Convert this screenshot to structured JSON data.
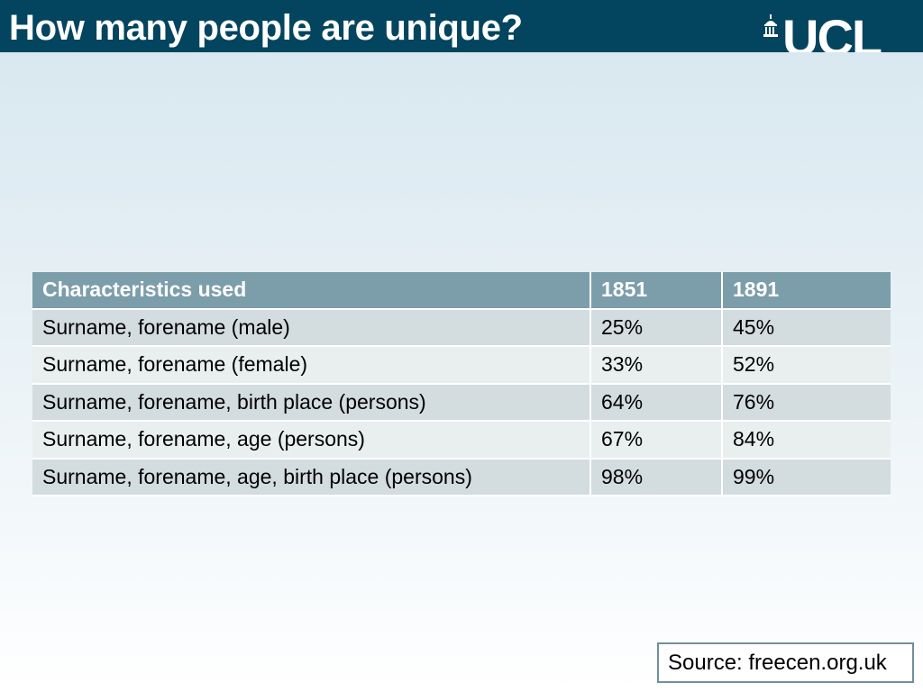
{
  "slide": {
    "title": "How many people are unique?",
    "logo_text": "UCL"
  },
  "table": {
    "headers": [
      "Characteristics used",
      "1851",
      "1891"
    ],
    "rows": [
      [
        "Surname, forename (male)",
        "25%",
        "45%"
      ],
      [
        "Surname, forename (female)",
        "33%",
        "52%"
      ],
      [
        "Surname, forename, birth place (persons)",
        "64%",
        "76%"
      ],
      [
        "Surname, forename, age (persons)",
        "67%",
        "84%"
      ],
      [
        "Surname, forename, age, birth place (persons)",
        "98%",
        "99%"
      ]
    ]
  },
  "source": "Source: freecen.org.uk",
  "colors": {
    "header_bar": "#03445e",
    "table_header": "#7b9eaa",
    "row_odd": "#d3dcdf",
    "row_even": "#e9eeef"
  }
}
